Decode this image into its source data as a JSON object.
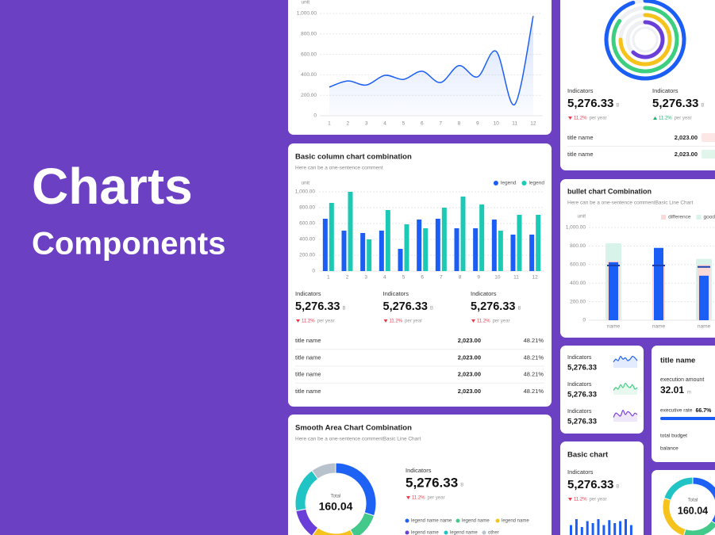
{
  "hero": {
    "title": "Charts",
    "subtitle": "Components"
  },
  "chart_data": [
    {
      "type": "line",
      "y_label": "unit",
      "categories": [
        "1",
        "2",
        "3",
        "4",
        "5",
        "6",
        "7",
        "8",
        "9",
        "10",
        "11",
        "12"
      ],
      "values": [
        280,
        340,
        300,
        395,
        355,
        435,
        325,
        490,
        380,
        630,
        110,
        975
      ],
      "color": "#1b5ef5",
      "ylim": [
        0,
        1000
      ],
      "yticks": [
        0,
        {
          "value": 200,
          "label": "200.00"
        },
        {
          "value": 400,
          "label": "400.00"
        },
        {
          "value": 600,
          "label": "600.00"
        },
        {
          "value": 800,
          "label": "800.00"
        },
        {
          "value": 1000,
          "label": "1,000.00"
        }
      ],
      "grid": true
    },
    {
      "type": "bar",
      "title": "Basic column chart combination",
      "subtitle": "Here can be a one-sentence comment",
      "y_label": "unit",
      "categories": [
        "1",
        "2",
        "3",
        "4",
        "5",
        "6",
        "7",
        "8",
        "9",
        "10",
        "11",
        "12"
      ],
      "series": [
        {
          "name": "legend",
          "color": "#1b5ef5",
          "values": [
            660,
            510,
            480,
            510,
            280,
            650,
            660,
            540,
            540,
            650,
            460,
            460
          ]
        },
        {
          "name": "legend",
          "color": "#1cc9b4",
          "values": [
            860,
            1000,
            400,
            770,
            590,
            540,
            800,
            940,
            840,
            510,
            710,
            710
          ]
        }
      ],
      "ylim": [
        0,
        1000
      ],
      "yticks": [
        0,
        {
          "value": 200,
          "label": "200.00"
        },
        {
          "value": 400,
          "label": "400.00"
        },
        {
          "value": 600,
          "label": "600.00"
        },
        {
          "value": 800,
          "label": "800.00"
        },
        {
          "value": 1000,
          "label": "1,000.00"
        }
      ],
      "grid": true,
      "legend": "top-right"
    },
    {
      "type": "donut",
      "title": "Smooth Area Chart Combination",
      "subtitle": "Here can be a one-sentence commentBasic Line Chart",
      "center_label": "Total",
      "center_value": 160.04,
      "categories": [
        "legend name name",
        "legend name",
        "legend name",
        "legend name",
        "legend name",
        "other"
      ],
      "values": [
        30,
        12,
        18,
        12,
        18,
        10
      ],
      "colors": [
        "#1e62f5",
        "#43c98a",
        "#f6c31c",
        "#6a3fd9",
        "#20c4c4",
        "#b8c2cc"
      ]
    },
    {
      "type": "radial",
      "values": [
        95,
        85,
        75,
        62
      ],
      "colors": [
        "#1b5ef5",
        "#3ccf7f",
        "#f6c31c",
        "#6a3fd9"
      ],
      "ylim": [
        0,
        100
      ]
    },
    {
      "type": "bullet",
      "title": "bullet chart Combination",
      "subtitle": "Here can be a one-sentence commentBasic Line Chart",
      "y_label": "unit",
      "categories": [
        "name",
        "name",
        "name"
      ],
      "series": [
        {
          "name": "difference",
          "color": "#fbd9d9",
          "values": [
            640,
            600,
            600
          ]
        },
        {
          "name": "good",
          "color": "#d8f3ea",
          "values": [
            830,
            null,
            660
          ]
        }
      ],
      "values": [
        625,
        780,
        480
      ],
      "color": "#1b5ef5",
      "targets": [
        590,
        590,
        575
      ],
      "target_color": "#1a3fb0",
      "ylim": [
        0,
        1000
      ],
      "yticks": [
        0,
        {
          "value": 200,
          "label": "200.00"
        },
        {
          "value": 400,
          "label": "400.00"
        },
        {
          "value": 600,
          "label": "600.00"
        },
        {
          "value": 800,
          "label": "800.00"
        },
        {
          "value": 1000,
          "label": "1,000.00"
        }
      ],
      "grid": true,
      "legend": "top-right"
    },
    {
      "type": "sparkline",
      "values": [
        4,
        6,
        5,
        8,
        6,
        7,
        5,
        6,
        8,
        7,
        5
      ],
      "color": "#1b5ef5",
      "ylim": [
        0,
        10
      ]
    },
    {
      "type": "sparkline",
      "values": [
        3,
        5,
        4,
        7,
        5,
        8,
        6,
        5,
        7,
        4,
        5
      ],
      "color": "#3ccf7f",
      "ylim": [
        0,
        10
      ]
    },
    {
      "type": "sparkline",
      "values": [
        3,
        6,
        5,
        4,
        8,
        5,
        7,
        6,
        4,
        6,
        5
      ],
      "color": "#7a3fe0",
      "ylim": [
        0,
        10
      ]
    },
    {
      "type": "mini_bar",
      "values": [
        22,
        28,
        20,
        26,
        24,
        28,
        22,
        27,
        24,
        26,
        28,
        22
      ],
      "color": "#1b5ef5",
      "ylim": [
        0,
        40
      ]
    },
    {
      "type": "donut",
      "center_label": "Total",
      "center_value": 160.04,
      "values": [
        35,
        20,
        25,
        20
      ],
      "colors": [
        "#1e62f5",
        "#43c98a",
        "#f6c31c",
        "#20c4c4"
      ]
    }
  ],
  "panels": {
    "column_indicators": [
      {
        "label": "Indicators",
        "value": "5,276.33",
        "unit": "B",
        "change": "11.2%",
        "period": "per year",
        "trend": "down"
      },
      {
        "label": "Indicators",
        "value": "5,276.33",
        "unit": "B",
        "change": "11.2%",
        "period": "per year",
        "trend": "down"
      },
      {
        "label": "Indicators",
        "value": "5,276.33",
        "unit": "B",
        "change": "11.2%",
        "period": "per year",
        "trend": "down"
      }
    ],
    "column_table": [
      [
        "title name",
        "2,023.00",
        "48.21%"
      ],
      [
        "title name",
        "2,023.00",
        "48.21%"
      ],
      [
        "title name",
        "2,023.00",
        "48.21%"
      ],
      [
        "title name",
        "2,023.00",
        "48.21%"
      ]
    ],
    "donut_indicator": {
      "label": "Indicators",
      "value": "5,276.33",
      "unit": "B",
      "change": "11.2%",
      "period": "per year",
      "trend": "down"
    },
    "radial_indicators": [
      {
        "label": "Indicators",
        "value": "5,276.33",
        "unit": "B",
        "change": "11.2%",
        "period": "per year",
        "trend": "down"
      },
      {
        "label": "Indicators",
        "value": "5,276.33",
        "unit": "B",
        "change": "11.2%",
        "period": "per year",
        "trend": "up"
      }
    ],
    "radial_table": [
      [
        "title name",
        "2,023.00"
      ],
      [
        "title name",
        "2,023.00"
      ]
    ],
    "spark_indicators": [
      {
        "label": "Indicators",
        "value": "5,276.33"
      },
      {
        "label": "Indicators",
        "value": "5,276.33"
      },
      {
        "label": "Indicators",
        "value": "5,276.33"
      }
    ],
    "budget": {
      "title": "title name",
      "amount_label": "execution amount",
      "amount": "32.01",
      "amount_unit": "m",
      "rate_label": "executive rate",
      "rate": "66.7%",
      "budget_label": "total budget",
      "balance_label": "balance"
    },
    "basic_indicator": {
      "title": "Basic chart",
      "label": "Indicators",
      "value": "5,276.33",
      "unit": "B",
      "change": "11.2%",
      "period": "per year",
      "trend": "down"
    }
  }
}
